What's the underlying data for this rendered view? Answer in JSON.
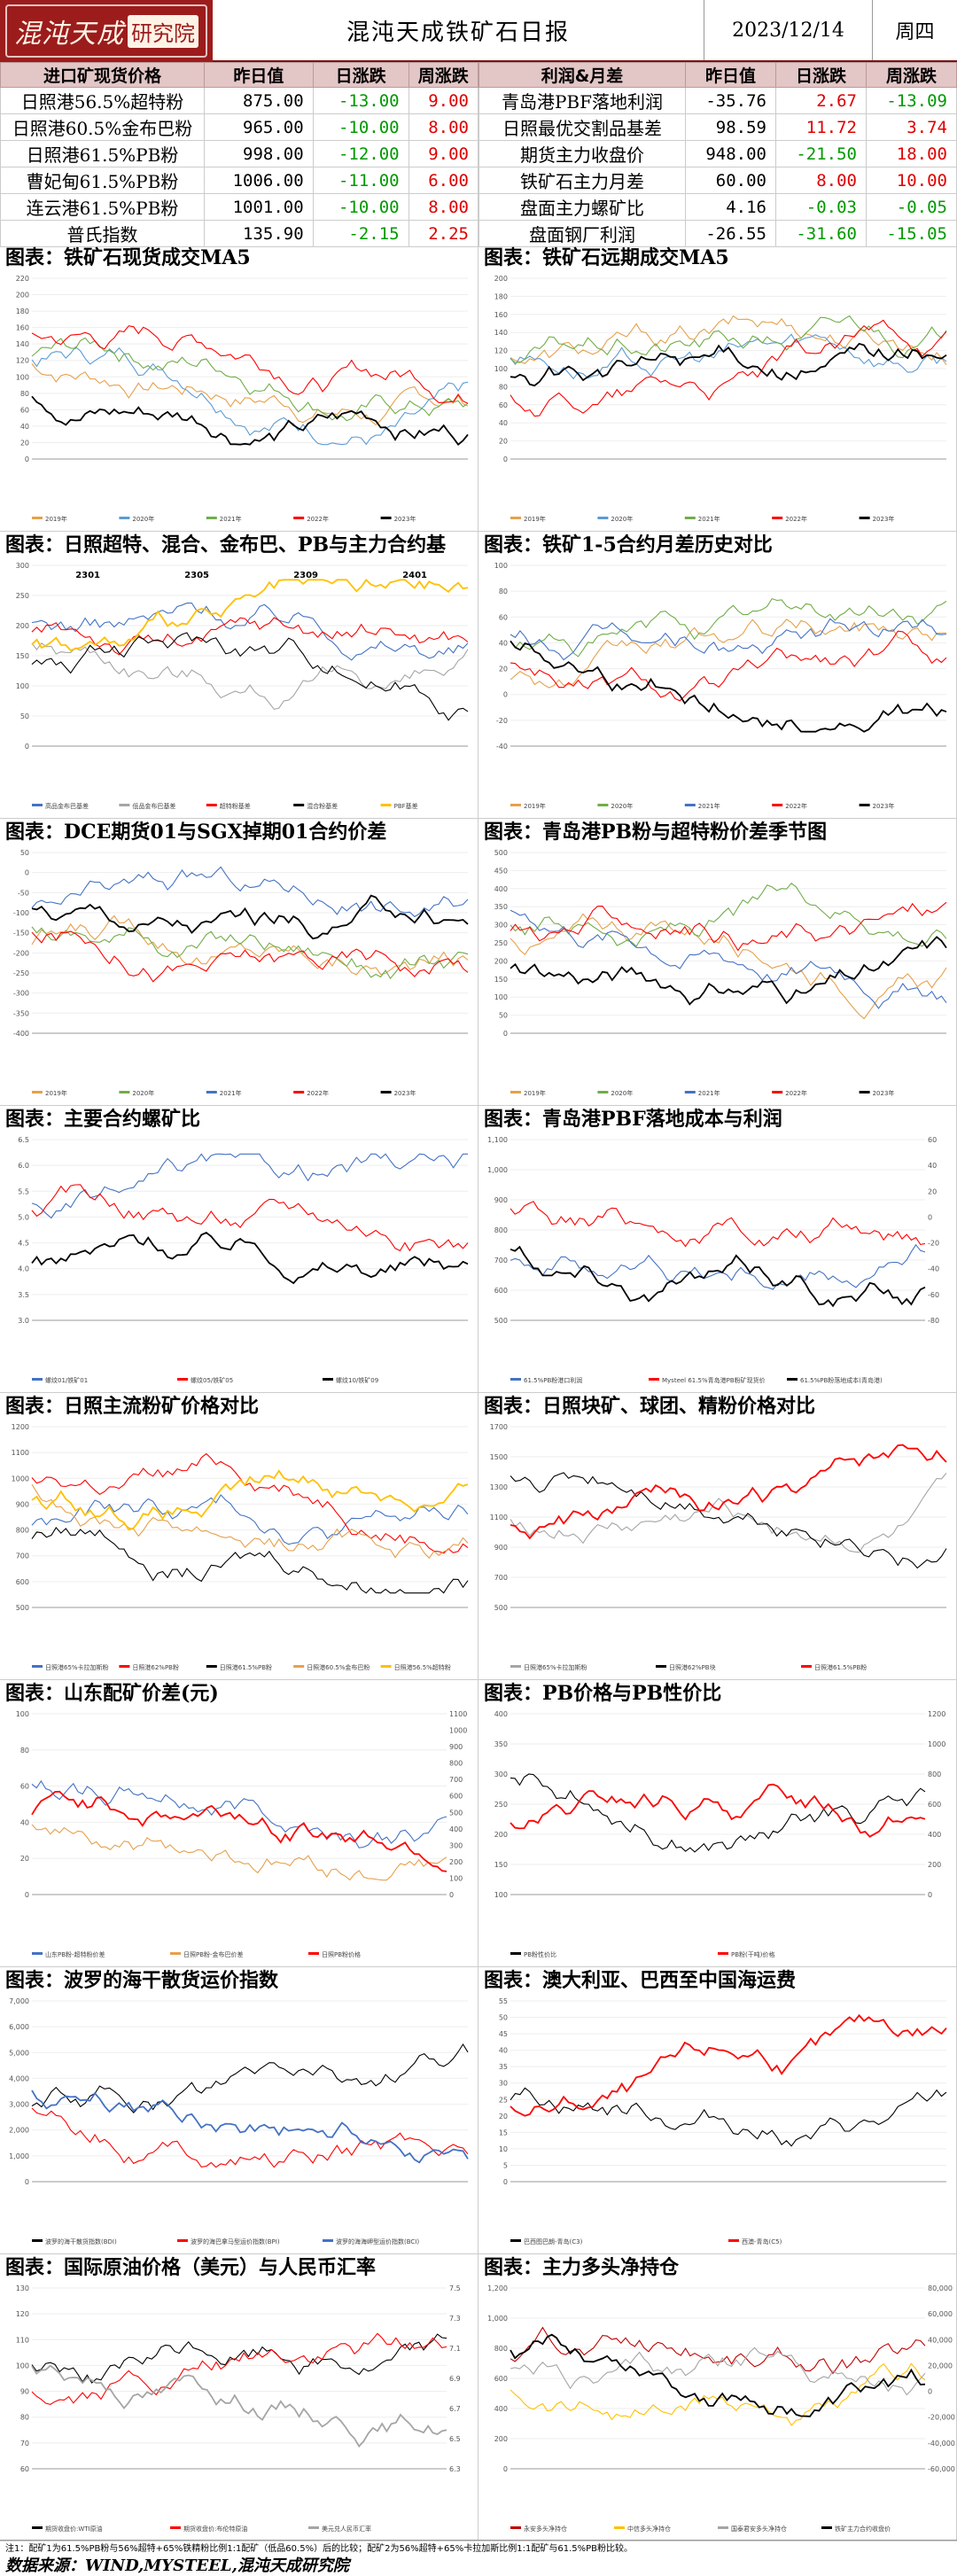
{
  "header": {
    "logo_text": "混沌天成",
    "logo_box": "研究院",
    "title": "混沌天成铁矿石日报",
    "date": "2023/12/14",
    "weekday": "周四"
  },
  "spot_table": {
    "headers": [
      "进口矿现货价格",
      "昨日值",
      "日涨跌",
      "周涨跌"
    ],
    "rows": [
      {
        "name": "日照港56.5%超特粉",
        "value": "875.00",
        "day": "-13.00",
        "week": "9.00"
      },
      {
        "name": "日照港60.5%金布巴粉",
        "value": "965.00",
        "day": "-10.00",
        "week": "8.00"
      },
      {
        "name": "日照港61.5%PB粉",
        "value": "998.00",
        "day": "-12.00",
        "week": "9.00"
      },
      {
        "name": "曹妃甸61.5%PB粉",
        "value": "1006.00",
        "day": "-11.00",
        "week": "6.00"
      },
      {
        "name": "连云港61.5%PB粉",
        "value": "1001.00",
        "day": "-10.00",
        "week": "8.00"
      },
      {
        "name": "普氏指数",
        "value": "135.90",
        "day": "-2.15",
        "week": "2.25"
      }
    ]
  },
  "profit_table": {
    "headers": [
      "利润&月差",
      "昨日值",
      "日涨跌",
      "周涨跌"
    ],
    "rows": [
      {
        "name": "青岛港PBF落地利润",
        "value": "-35.76",
        "day": "2.67",
        "week": "-13.09"
      },
      {
        "name": "日照最优交割品基差",
        "value": "98.59",
        "day": "11.72",
        "week": "3.74"
      },
      {
        "name": "期货主力收盘价",
        "value": "948.00",
        "day": "-21.50",
        "week": "18.00"
      },
      {
        "name": "铁矿石主力月差",
        "value": "60.00",
        "day": "8.00",
        "week": "10.00"
      },
      {
        "name": "盘面主力螺矿比",
        "value": "4.16",
        "day": "-0.03",
        "week": "-0.05"
      },
      {
        "name": "盘面钢厂利润",
        "value": "-26.55",
        "day": "-31.60",
        "week": "-15.05"
      }
    ]
  },
  "charts": [
    {
      "title": "图表：铁矿石现货成交MA5",
      "yticks": [
        "0",
        "20",
        "40",
        "60",
        "80",
        "100",
        "120",
        "140",
        "160",
        "180",
        "200",
        "220"
      ],
      "legend": [
        "2019年",
        "2020年",
        "2021年",
        "2022年",
        "2023年"
      ],
      "colors": [
        "#e6a04b",
        "#5b9bd5",
        "#70ad47",
        "#ff0000",
        "#000000"
      ]
    },
    {
      "title": "图表：铁矿石远期成交MA5",
      "yticks": [
        "0",
        "20",
        "40",
        "60",
        "80",
        "100",
        "120",
        "140",
        "160",
        "180",
        "200"
      ],
      "legend": [
        "2019年",
        "2020年",
        "2021年",
        "2022年",
        "2023年"
      ],
      "colors": [
        "#e6a04b",
        "#5b9bd5",
        "#70ad47",
        "#ff0000",
        "#000000"
      ]
    },
    {
      "title": "图表：日照超特、混合、金布巴、PB与主力合约基",
      "yticks": [
        "0",
        "50",
        "100",
        "150",
        "200",
        "250",
        "300"
      ],
      "labels": [
        "2301",
        "2305",
        "2309",
        "2401"
      ],
      "legend": [
        "高品金布巴基差",
        "低品金布巴基差",
        "超特粉基差",
        "混合粉基差",
        "PBF基差"
      ],
      "colors": [
        "#4472c4",
        "#a5a5a5",
        "#ff0000",
        "#000000",
        "#ffc000"
      ]
    },
    {
      "title": "图表：铁矿1-5合约月差历史对比",
      "yticks": [
        "-40",
        "-20",
        "0",
        "20",
        "40",
        "60",
        "80",
        "100"
      ],
      "legend": [
        "2019年",
        "2020年",
        "2021年",
        "2022年",
        "2023年"
      ],
      "colors": [
        "#e6a04b",
        "#70ad47",
        "#4472c4",
        "#ff0000",
        "#000000"
      ]
    },
    {
      "title": "图表：DCE期货01与SGX掉期01合约价差",
      "yticks": [
        "-400",
        "-350",
        "-300",
        "-250",
        "-200",
        "-150",
        "-100",
        "-50",
        "0",
        "50"
      ],
      "legend": [
        "2019年",
        "2020年",
        "2021年",
        "2022年",
        "2023年"
      ],
      "colors": [
        "#e6a04b",
        "#70ad47",
        "#4472c4",
        "#ff0000",
        "#000000"
      ]
    },
    {
      "title": "图表：青岛港PB粉与超特粉价差季节图",
      "yticks": [
        "0",
        "50",
        "100",
        "150",
        "200",
        "250",
        "300",
        "350",
        "400",
        "450",
        "500"
      ],
      "legend": [
        "2019年",
        "2020年",
        "2021年",
        "2022年",
        "2023年"
      ],
      "colors": [
        "#e6a04b",
        "#70ad47",
        "#4472c4",
        "#ff0000",
        "#000000"
      ]
    },
    {
      "title": "图表：主要合约螺矿比",
      "yticks": [
        "3.0",
        "3.5",
        "4.0",
        "4.5",
        "5.0",
        "5.5",
        "6.0",
        "6.5"
      ],
      "legend": [
        "螺纹01/铁矿01",
        "螺纹05/铁矿05",
        "螺纹10/铁矿09"
      ],
      "colors": [
        "#4472c4",
        "#ff0000",
        "#000000"
      ]
    },
    {
      "title": "图表：青岛港PBF落地成本与利润",
      "yticks": [
        "500",
        "600",
        "700",
        "800",
        "900",
        "1,000",
        "1,100"
      ],
      "yticks_right": [
        "-80",
        "-60",
        "-40",
        "-20",
        "0",
        "20",
        "40",
        "60"
      ],
      "legend": [
        "61.5%PB粉港口利润",
        "Mysteel 61.5%青岛港PB粉矿现货价",
        "61.5%PB粉落地成本(青岛港)"
      ],
      "colors": [
        "#4472c4",
        "#ff0000",
        "#000000"
      ]
    },
    {
      "title": "图表：日照主流粉矿价格对比",
      "yticks": [
        "500",
        "600",
        "700",
        "800",
        "900",
        "1000",
        "1100",
        "1200"
      ],
      "legend": [
        "日照港65%卡拉加斯粉",
        "日照港62%PB粉",
        "日照港61.5%PB粉",
        "日照港60.5%金布巴粉",
        "日照港56.5%超特粉"
      ],
      "colors": [
        "#4472c4",
        "#ff0000",
        "#000000",
        "#e6a04b",
        "#ffc000"
      ]
    },
    {
      "title": "图表：日照块矿、球团、精粉价格对比",
      "yticks": [
        "500",
        "700",
        "900",
        "1100",
        "1300",
        "1500",
        "1700"
      ],
      "legend": [
        "日照港65%卡拉加斯粉",
        "日照港62%PB块",
        "日照港61.5%PB粉"
      ],
      "colors": [
        "#a5a5a5",
        "#000000",
        "#ff0000"
      ]
    },
    {
      "title": "图表：山东配矿价差(元)",
      "yticks": [
        "0",
        "20",
        "40",
        "60",
        "80",
        "100"
      ],
      "yticks_right": [
        "0",
        "100",
        "200",
        "300",
        "400",
        "500",
        "600",
        "700",
        "800",
        "900",
        "1000",
        "1100"
      ],
      "legend": [
        "山东PB粉-超特粉价差",
        "日照PB粉-金布巴价差",
        "日照PB粉价格"
      ],
      "colors": [
        "#4472c4",
        "#e6a04b",
        "#ff0000"
      ]
    },
    {
      "title": "图表：PB价格与PB性价比",
      "yticks": [
        "100",
        "150",
        "200",
        "250",
        "300",
        "350",
        "400"
      ],
      "yticks_right": [
        "0",
        "200",
        "400",
        "600",
        "800",
        "1000",
        "1200"
      ],
      "legend": [
        "PB粉性价比",
        "PB粉(干吨)价格"
      ],
      "colors": [
        "#000000",
        "#ff0000"
      ]
    },
    {
      "title": "图表：波罗的海干散货运价指数",
      "yticks": [
        "0",
        "1,000",
        "2,000",
        "3,000",
        "4,000",
        "5,000",
        "6,000",
        "7,000"
      ],
      "legend": [
        "波罗的海干散货指数(BDI)",
        "波罗的海巴拿马型运价指数(BPI)",
        "波罗的海海岬型运价指数(BCI)"
      ],
      "colors": [
        "#000000",
        "#ff0000",
        "#4472c4"
      ]
    },
    {
      "title": "图表：澳大利亚、巴西至中国海运费",
      "yticks": [
        "0",
        "5",
        "10",
        "15",
        "20",
        "25",
        "30",
        "35",
        "40",
        "45",
        "50",
        "55"
      ],
      "legend": [
        "巴西图巴朗-青岛(C3)",
        "西澳-青岛(C5)"
      ],
      "colors": [
        "#000000",
        "#ff0000"
      ]
    },
    {
      "title": "图表：国际原油价格（美元）与人民币汇率",
      "yticks": [
        "60",
        "70",
        "80",
        "90",
        "100",
        "110",
        "120",
        "130"
      ],
      "yticks_right": [
        "6.3",
        "6.5",
        "6.7",
        "6.9",
        "7.1",
        "7.3",
        "7.5"
      ],
      "legend": [
        "期货收盘价:WTI原油",
        "期货收盘价:布伦特原油",
        "美元兑人民币汇率"
      ],
      "colors": [
        "#000000",
        "#ff0000",
        "#a5a5a5"
      ]
    },
    {
      "title": "图表：主力多头净持仓",
      "yticks": [
        "0",
        "200",
        "400",
        "600",
        "800",
        "1,000",
        "1,200"
      ],
      "yticks_right": [
        "-60,000",
        "-40,000",
        "-20,000",
        "0",
        "20,000",
        "40,000",
        "60,000",
        "80,000"
      ],
      "legend": [
        "永安多头净持仓",
        "中信多头净持仓",
        "国泰君安多头净持仓",
        "铁矿主力合约收盘价"
      ],
      "colors": [
        "#c00000",
        "#ffc000",
        "#a5a5a5",
        "#000000"
      ]
    }
  ],
  "footer": {
    "note": "注1：配矿1为61.5%PB粉与56%超特+65%铁精粉比例1:1配矿（低品60.5%）后的比较；配矿2为56%超特+65%卡拉加斯比例1:1配矿与61.5%PB粉比较。",
    "source": "数据来源：WIND,MYSTEEL,混沌天成研究院"
  }
}
